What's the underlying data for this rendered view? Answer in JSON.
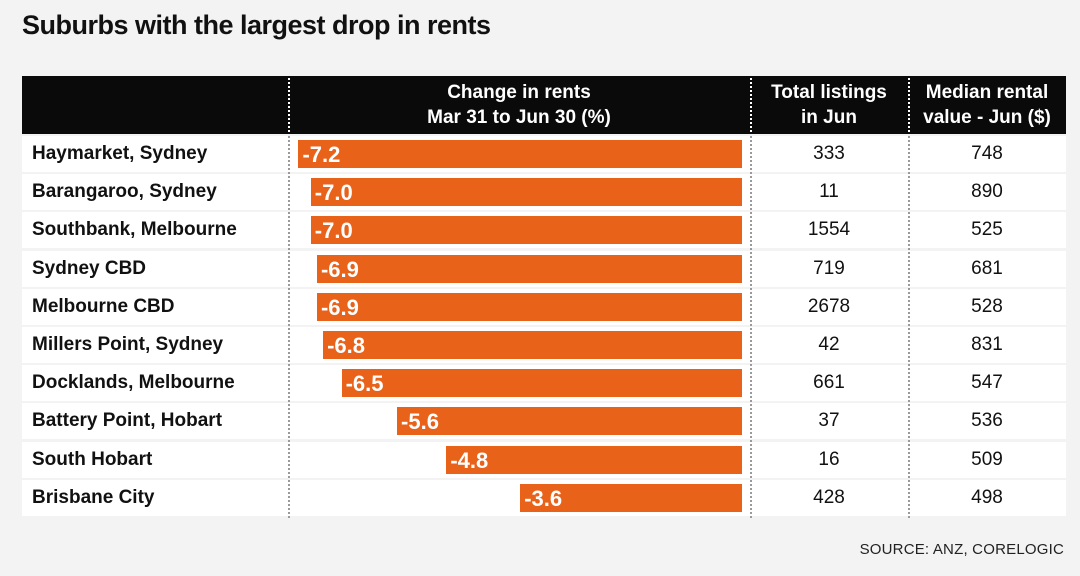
{
  "title": "Suburbs with the largest drop in rents",
  "source": "SOURCE: ANZ, CORELOGIC",
  "colors": {
    "bar": "#e8621a",
    "header_bg": "#0a0a0a",
    "row_bg": "#ffffff",
    "page_bg": "#f3f3f3"
  },
  "header": {
    "suburb": "",
    "change_line1": "Change in rents",
    "change_line2": "Mar 31 to Jun 30 (%)",
    "listings_line1": "Total listings",
    "listings_line2": "in Jun",
    "median_line1": "Median rental",
    "median_line2": "value - Jun ($)"
  },
  "chart_data": {
    "type": "bar",
    "title": "Suburbs with the largest drop in rents",
    "categories": [
      "Haymarket, Sydney",
      "Barangaroo, Sydney",
      "Southbank, Melbourne",
      "Sydney CBD",
      "Melbourne CBD",
      "Millers Point, Sydney",
      "Docklands, Melbourne",
      "Battery Point, Hobart",
      "South Hobart",
      "Brisbane City"
    ],
    "values": [
      -7.2,
      -7.0,
      -7.0,
      -6.9,
      -6.9,
      -6.8,
      -6.5,
      -5.6,
      -4.8,
      -3.6
    ],
    "value_labels": [
      "-7.2",
      "-7.0",
      "-7.0",
      "-6.9",
      "-6.9",
      "-6.8",
      "-6.5",
      "-5.6",
      "-4.8",
      "-3.6"
    ],
    "total_listings": [
      "333",
      "11",
      "1554",
      "719",
      "2678",
      "42",
      "661",
      "37",
      "16",
      "428"
    ],
    "median_rent": [
      "748",
      "890",
      "525",
      "681",
      "528",
      "831",
      "547",
      "536",
      "509",
      "498"
    ],
    "orientation": "horizontal",
    "grid": false
  }
}
